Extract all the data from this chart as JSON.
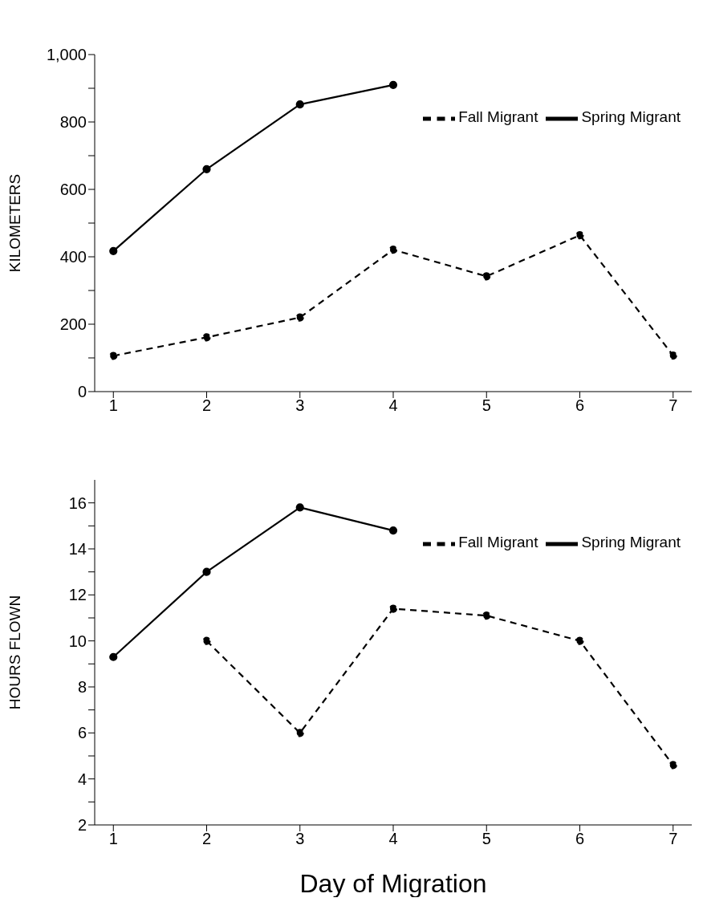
{
  "chart_data": [
    {
      "type": "line",
      "ylabel": "KILOMETERS",
      "x": [
        1,
        2,
        3,
        4,
        5,
        6,
        7
      ],
      "series": [
        {
          "name": "Spring Migrant",
          "color": "#000000",
          "line_style": "solid",
          "values": [
            417,
            660,
            852,
            910,
            null,
            null,
            null
          ]
        },
        {
          "name": "Fall Migrant",
          "color": "#000000",
          "line_style": "dashed",
          "values": [
            106,
            161,
            220,
            421,
            342,
            464,
            107
          ]
        }
      ],
      "xlim": [
        0.8,
        7.2
      ],
      "xticks": [
        1,
        2,
        3,
        4,
        5,
        6,
        7
      ],
      "ylim": [
        0,
        1000
      ],
      "yticks": [
        0,
        {
          "value": 100,
          "label": null
        },
        200,
        {
          "value": 300,
          "label": null
        },
        400,
        {
          "value": 500,
          "label": null
        },
        600,
        {
          "value": 700,
          "label": null
        },
        800,
        {
          "value": 900,
          "label": null
        },
        {
          "value": 1000,
          "label": "1,000"
        }
      ],
      "marker": "circle",
      "grid": false,
      "legend": "top right"
    },
    {
      "type": "line",
      "ylabel": "HOURS FLOWN",
      "xlabel": "Day of Migration",
      "x": [
        1,
        2,
        3,
        4,
        5,
        6,
        7
      ],
      "series": [
        {
          "name": "Spring Migrant",
          "color": "#000000",
          "line_style": "solid",
          "values": [
            9.3,
            13.0,
            15.8,
            14.8,
            null,
            null,
            null
          ]
        },
        {
          "name": "Fall Migrant",
          "color": "#000000",
          "line_style": "dashed",
          "values": [
            null,
            10.0,
            6.0,
            11.4,
            11.1,
            10.0,
            4.6
          ]
        }
      ],
      "xlim": [
        0.8,
        7.2
      ],
      "xticks": [
        1,
        2,
        3,
        4,
        5,
        6,
        7
      ],
      "ylim": [
        2,
        17
      ],
      "yticks": [
        2,
        {
          "value": 3,
          "label": null
        },
        4,
        {
          "value": 5,
          "label": null
        },
        6,
        {
          "value": 7,
          "label": null
        },
        8,
        {
          "value": 9,
          "label": null
        },
        10,
        {
          "value": 11,
          "label": null
        },
        12,
        {
          "value": 13,
          "label": null
        },
        14,
        {
          "value": 15,
          "label": null
        },
        16
      ],
      "marker": "circle",
      "grid": false,
      "legend": "top right"
    }
  ]
}
